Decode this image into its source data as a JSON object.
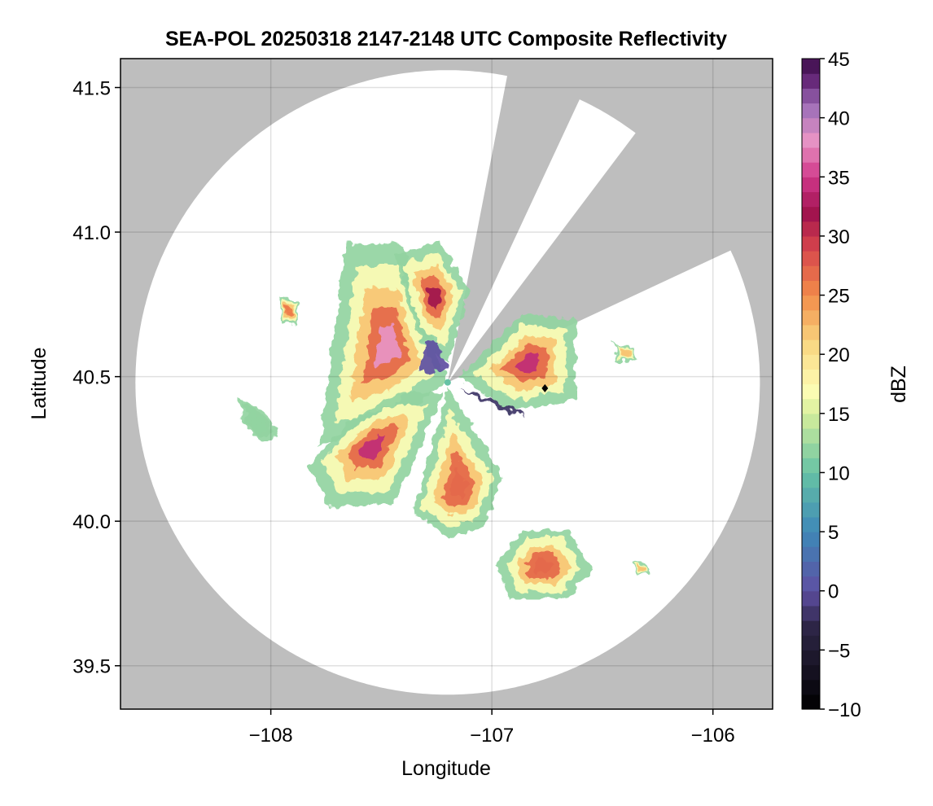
{
  "chart_data": {
    "type": "heatmap",
    "title": "SEA-POL 20250318 2147-2148 UTC Composite Reflectivity",
    "xlabel": "Longitude",
    "ylabel": "Latitude",
    "xlim": [
      -108.68,
      -105.73
    ],
    "ylim": [
      39.35,
      41.6
    ],
    "xticks": [
      -108,
      -107,
      -106
    ],
    "xtick_labels": [
      "−108",
      "−107",
      "−106"
    ],
    "yticks": [
      39.5,
      40.0,
      40.5,
      41.0,
      41.5
    ],
    "ytick_labels": [
      "39.5",
      "40.0",
      "40.5",
      "41.0",
      "41.5"
    ],
    "grid": true,
    "background_color": "#bebebe",
    "radar": {
      "center_lon": -107.2,
      "center_lat": 40.48,
      "max_range_deg_lat": 1.08,
      "blocked_sectors_deg_from_north": [
        [
          11,
          25
        ],
        [
          37,
          65
        ]
      ]
    },
    "colorbar": {
      "label": "dBZ",
      "min": -10,
      "max": 45,
      "ticks": [
        -10,
        -5,
        0,
        5,
        10,
        15,
        20,
        25,
        30,
        35,
        40,
        45
      ],
      "tick_labels": [
        "−10",
        "−5",
        "0",
        "5",
        "10",
        "15",
        "20",
        "25",
        "30",
        "35",
        "40",
        "45"
      ],
      "levels": 44,
      "colormap_stops": [
        {
          "v": -10,
          "c": "#000000"
        },
        {
          "v": -3,
          "c": "#2e2647"
        },
        {
          "v": 0,
          "c": "#5e4fa2"
        },
        {
          "v": 5,
          "c": "#3e88b8"
        },
        {
          "v": 10,
          "c": "#66c2a5"
        },
        {
          "v": 15,
          "c": "#d6ee9b"
        },
        {
          "v": 17,
          "c": "#fdfdb5"
        },
        {
          "v": 21,
          "c": "#f9d680"
        },
        {
          "v": 25,
          "c": "#f28c4a"
        },
        {
          "v": 29,
          "c": "#d6444c"
        },
        {
          "v": 32,
          "c": "#a0124e"
        },
        {
          "v": 35,
          "c": "#d0388a"
        },
        {
          "v": 38,
          "c": "#e894c4"
        },
        {
          "v": 41,
          "c": "#9e6eb8"
        },
        {
          "v": 43,
          "c": "#6a2c7d"
        },
        {
          "v": 45,
          "c": "#3a0b47"
        }
      ]
    },
    "storm_cells": [
      {
        "name": "northwest main echo",
        "lon": -107.56,
        "lat": 40.66,
        "max_dbz": 38
      },
      {
        "name": "north central band",
        "lon": -107.33,
        "lat": 40.78,
        "max_dbz": 32
      },
      {
        "name": "southwest arc",
        "lon": -107.52,
        "lat": 40.3,
        "max_dbz": 34
      },
      {
        "name": "south spokes",
        "lon": -107.2,
        "lat": 40.18,
        "max_dbz": 27
      },
      {
        "name": "east cell",
        "lon": -106.75,
        "lat": 40.58,
        "max_dbz": 34
      },
      {
        "name": "southeast cluster",
        "lon": -106.77,
        "lat": 39.84,
        "max_dbz": 27
      },
      {
        "name": "near-radar clutter",
        "lon": -107.28,
        "lat": 40.56,
        "max_dbz": 0
      },
      {
        "name": "east low-echo streak",
        "lon": -106.95,
        "lat": 40.38,
        "max_dbz": -2
      },
      {
        "name": "far west fragment",
        "lon": -108.08,
        "lat": 40.35,
        "max_dbz": 12
      },
      {
        "name": "northwest fragment",
        "lon": -107.92,
        "lat": 40.74,
        "max_dbz": 26
      },
      {
        "name": "far east fragments",
        "lon": -106.38,
        "lat": 40.6,
        "max_dbz": 22
      },
      {
        "name": "south-southeast fragment",
        "lon": -106.32,
        "lat": 39.84,
        "max_dbz": 22
      }
    ],
    "markers": [
      {
        "name": "radar site",
        "lon": -107.2,
        "lat": 40.48,
        "shape": "dot",
        "color": "#66c2a5"
      },
      {
        "name": "point marker",
        "lon": -106.76,
        "lat": 40.46,
        "shape": "diamond",
        "color": "#000000"
      }
    ]
  }
}
